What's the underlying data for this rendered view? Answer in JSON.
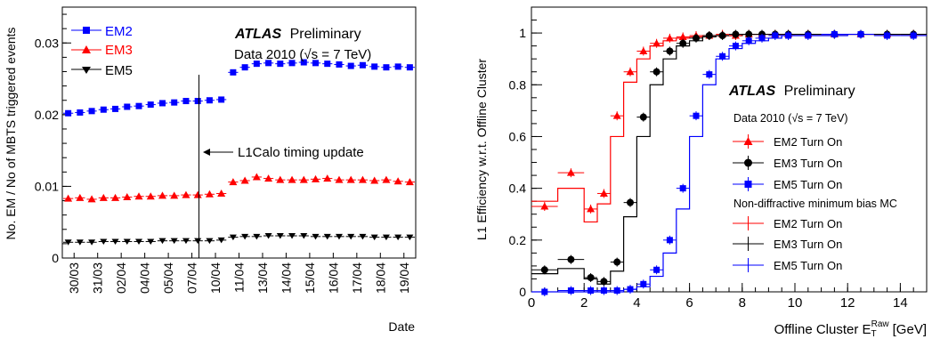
{
  "chart_data": [
    {
      "type": "scatter",
      "ylabel": "No. EM / No of MBTS triggered events",
      "xlabel": "Date",
      "ylim": [
        0,
        0.035
      ],
      "y_ticks": [
        "0",
        "0.01",
        "0.02",
        "0.03"
      ],
      "categories": [
        "30/03",
        "31/03",
        "02/04",
        "04/04",
        "05/04",
        "07/04",
        "10/04",
        "11/04",
        "13/04",
        "14/04",
        "15/04",
        "16/04",
        "17/04",
        "18/04",
        "19/04"
      ],
      "n_points": 30,
      "boundary_index": 14,
      "series": [
        {
          "name": "EM2",
          "color": "#0000ff",
          "marker": "square",
          "values": [
            0.0202,
            0.0203,
            0.0205,
            0.0207,
            0.0208,
            0.0211,
            0.0212,
            0.0214,
            0.0216,
            0.0217,
            0.0219,
            0.0219,
            0.022,
            0.0221,
            0.0259,
            0.0266,
            0.0271,
            0.0272,
            0.0271,
            0.0272,
            0.0273,
            0.0272,
            0.0271,
            0.027,
            0.0268,
            0.0269,
            0.0267,
            0.0266,
            0.0267,
            0.0266
          ]
        },
        {
          "name": "EM3",
          "color": "#ff0000",
          "marker": "triangle-up",
          "values": [
            0.0083,
            0.0084,
            0.0082,
            0.0084,
            0.0084,
            0.0085,
            0.0086,
            0.0086,
            0.0087,
            0.0087,
            0.0088,
            0.0088,
            0.0089,
            0.009,
            0.0106,
            0.0108,
            0.0113,
            0.0111,
            0.0109,
            0.0109,
            0.0109,
            0.011,
            0.0111,
            0.0109,
            0.0109,
            0.0109,
            0.0108,
            0.0109,
            0.0107,
            0.0106
          ]
        },
        {
          "name": "EM5",
          "color": "#000000",
          "marker": "triangle-down",
          "values": [
            0.0022,
            0.0022,
            0.0022,
            0.0023,
            0.0023,
            0.0023,
            0.0023,
            0.0023,
            0.0024,
            0.0024,
            0.0024,
            0.0024,
            0.0024,
            0.0025,
            0.0029,
            0.003,
            0.003,
            0.0031,
            0.0031,
            0.0031,
            0.0031,
            0.003,
            0.003,
            0.003,
            0.003,
            0.003,
            0.0029,
            0.0029,
            0.0029,
            0.0029
          ]
        }
      ],
      "annotations": {
        "atlas": "ATLAS",
        "preliminary": "Preliminary",
        "data_label": "Data 2010 (√s = 7 TeV)",
        "timing": "L1Calo timing update"
      }
    },
    {
      "type": "line",
      "ylabel": "L1 Efficiency w.r.t. Offline Cluster",
      "xlabel_main": "Offline Cluster E",
      "xlabel_sub": "T",
      "xlabel_sup": "Raw",
      "xlabel_unit": "[GeV]",
      "xlim": [
        0,
        15
      ],
      "ylim": [
        0,
        1.1
      ],
      "x_ticks": [
        "0",
        "2",
        "4",
        "6",
        "8",
        "10",
        "12",
        "14"
      ],
      "y_ticks": [
        "0",
        "0.2",
        "0.4",
        "0.6",
        "0.8",
        "1"
      ],
      "data_series": [
        {
          "name": "EM2 Turn On",
          "color": "#ff0000",
          "marker": "triangle-up",
          "x": [
            0.5,
            1.5,
            2.25,
            2.75,
            3.25,
            3.75,
            4.25,
            4.75,
            5.25,
            5.75,
            6.25,
            6.75,
            7.25,
            7.75,
            8.25,
            8.75,
            9.25,
            9.75,
            10.5,
            11.5,
            12.5,
            13.5,
            14.5
          ],
          "y": [
            0.33,
            0.46,
            0.32,
            0.38,
            0.68,
            0.85,
            0.93,
            0.96,
            0.98,
            0.985,
            0.99,
            0.99,
            0.995,
            0.99,
            0.995,
            0.995,
            0.995,
            0.995,
            0.995,
            0.995,
            0.995,
            0.995,
            0.995
          ]
        },
        {
          "name": "EM3 Turn On",
          "color": "#000000",
          "marker": "circle",
          "x": [
            0.5,
            1.5,
            2.25,
            2.75,
            3.25,
            3.75,
            4.25,
            4.75,
            5.25,
            5.75,
            6.25,
            6.75,
            7.25,
            7.75,
            8.25,
            8.75,
            9.25,
            9.75,
            10.5,
            11.5,
            12.5,
            13.5,
            14.5
          ],
          "y": [
            0.085,
            0.125,
            0.055,
            0.04,
            0.115,
            0.345,
            0.675,
            0.85,
            0.93,
            0.96,
            0.98,
            0.99,
            0.99,
            0.995,
            0.995,
            0.995,
            0.995,
            0.995,
            0.995,
            0.995,
            0.995,
            0.995,
            0.995
          ]
        },
        {
          "name": "EM5 Turn On",
          "color": "#0000ff",
          "marker": "square",
          "x": [
            0.5,
            1.5,
            2.25,
            2.75,
            3.25,
            3.75,
            4.25,
            4.75,
            5.25,
            5.75,
            6.25,
            6.75,
            7.25,
            7.75,
            8.25,
            8.75,
            9.25,
            9.75,
            10.5,
            11.5,
            12.5,
            13.5,
            14.5
          ],
          "y": [
            0.0,
            0.005,
            0.005,
            0.005,
            0.005,
            0.01,
            0.03,
            0.085,
            0.2,
            0.4,
            0.68,
            0.84,
            0.91,
            0.95,
            0.97,
            0.98,
            0.99,
            0.99,
            0.99,
            0.995,
            0.995,
            0.99,
            0.99
          ]
        }
      ],
      "mc_series": [
        {
          "name": "EM2 Turn On",
          "color": "#ff0000",
          "edges": [
            0,
            1,
            2,
            2.5,
            3,
            3.5,
            4,
            4.5,
            5,
            5.5,
            6,
            6.5,
            7,
            7.5,
            8,
            8.5,
            9,
            9.5,
            10,
            11,
            12,
            13,
            14,
            15
          ],
          "y": [
            0.35,
            0.4,
            0.27,
            0.34,
            0.6,
            0.81,
            0.9,
            0.95,
            0.97,
            0.98,
            0.985,
            0.99,
            0.99,
            0.99,
            0.995,
            0.995,
            0.995,
            0.995,
            0.995,
            0.995,
            0.995,
            0.995,
            0.995
          ]
        },
        {
          "name": "EM3 Turn On",
          "color": "#000000",
          "edges": [
            0,
            1,
            2,
            2.5,
            3,
            3.5,
            4,
            4.5,
            5,
            5.5,
            6,
            6.5,
            7,
            7.5,
            8,
            8.5,
            9,
            9.5,
            10,
            11,
            12,
            13,
            14,
            15
          ],
          "y": [
            0.07,
            0.09,
            0.05,
            0.03,
            0.08,
            0.29,
            0.6,
            0.8,
            0.9,
            0.95,
            0.97,
            0.985,
            0.99,
            0.99,
            0.995,
            0.995,
            0.995,
            0.995,
            0.995,
            0.995,
            0.995,
            0.995,
            0.995
          ]
        },
        {
          "name": "EM5 Turn On",
          "color": "#0000ff",
          "edges": [
            0,
            1,
            2,
            2.5,
            3,
            3.5,
            4,
            4.5,
            5,
            5.5,
            6,
            6.5,
            7,
            7.5,
            8,
            8.5,
            9,
            9.5,
            10,
            11,
            12,
            13,
            14,
            15
          ],
          "y": [
            0.0,
            0.0,
            0.0,
            0.0,
            0.0,
            0.01,
            0.02,
            0.06,
            0.15,
            0.32,
            0.6,
            0.8,
            0.9,
            0.94,
            0.96,
            0.97,
            0.98,
            0.99,
            0.99,
            0.99,
            0.995,
            0.995,
            0.995
          ]
        }
      ],
      "annotations": {
        "atlas": "ATLAS",
        "preliminary": "Preliminary",
        "data_label": "Data 2010 (√s = 7 TeV)",
        "mc_label": "Non-diffractive minimum bias MC"
      }
    }
  ]
}
